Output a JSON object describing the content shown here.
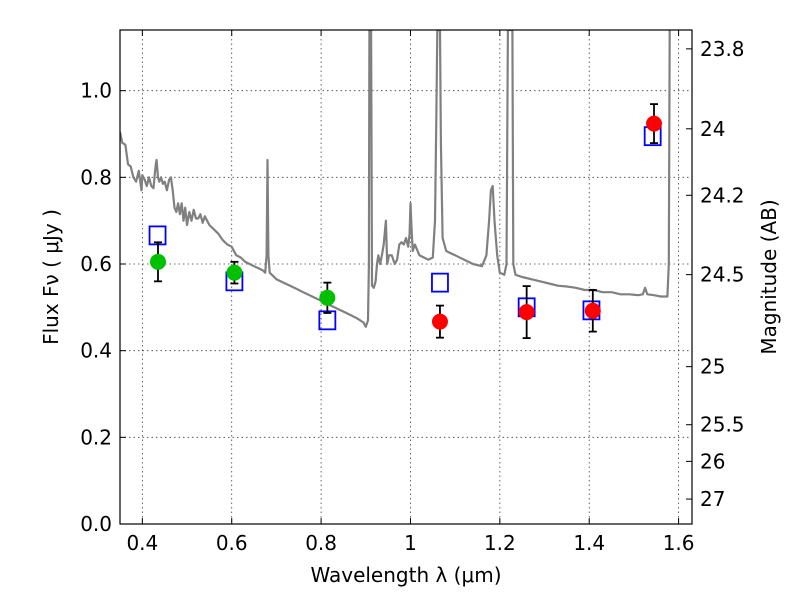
{
  "chart_data": {
    "type": "scatter",
    "title": "",
    "xlabel": "Wavelength  λ (μm)",
    "ylabel": "Flux  Fν  ( μJy )",
    "y2label": "Magnitude (AB)",
    "xlim": [
      0.35,
      1.63
    ],
    "ylim": [
      0.0,
      1.14
    ],
    "grid": true,
    "legend": "none",
    "x_ticks": [
      {
        "value": 0.4,
        "label": "0.4"
      },
      {
        "value": 0.6,
        "label": "0.6"
      },
      {
        "value": 0.8,
        "label": "0.8"
      },
      {
        "value": 1.0,
        "label": "1"
      },
      {
        "value": 1.2,
        "label": "1.2"
      },
      {
        "value": 1.4,
        "label": "1.4"
      },
      {
        "value": 1.6,
        "label": "1.6"
      }
    ],
    "y_ticks": [
      {
        "value": 0.0,
        "label": "0.0"
      },
      {
        "value": 0.2,
        "label": "0.2"
      },
      {
        "value": 0.4,
        "label": "0.4"
      },
      {
        "value": 0.6,
        "label": "0.6"
      },
      {
        "value": 0.8,
        "label": "0.8"
      },
      {
        "value": 1.0,
        "label": "1.0"
      }
    ],
    "magnitude_ticks": [
      {
        "value": 23.8,
        "label": "23.8"
      },
      {
        "value": 24.0,
        "label": "24"
      },
      {
        "value": 24.2,
        "label": "24.2"
      },
      {
        "value": 24.5,
        "label": "24.5"
      },
      {
        "value": 25.0,
        "label": "25"
      },
      {
        "value": 25.5,
        "label": "25.5"
      },
      {
        "value": 26.0,
        "label": "26"
      },
      {
        "value": 27.0,
        "label": "27"
      }
    ],
    "colors": {
      "model": "#808080",
      "green": "#00c000",
      "red": "#ff0000",
      "box": "#0000ff",
      "errorbar": "#000000"
    },
    "series": [
      {
        "type": "line",
        "points": [
          [
            0.35,
            0.905
          ],
          [
            0.355,
            0.88
          ],
          [
            0.362,
            0.875
          ],
          [
            0.368,
            0.83
          ],
          [
            0.374,
            0.825
          ],
          [
            0.38,
            0.8
          ],
          [
            0.386,
            0.79
          ],
          [
            0.392,
            0.815
          ],
          [
            0.398,
            0.77
          ],
          [
            0.4,
            0.805
          ],
          [
            0.405,
            0.795
          ],
          [
            0.41,
            0.78
          ],
          [
            0.415,
            0.8
          ],
          [
            0.42,
            0.78
          ],
          [
            0.425,
            0.775
          ],
          [
            0.428,
            0.81
          ],
          [
            0.43,
            0.83
          ],
          [
            0.432,
            0.84
          ],
          [
            0.435,
            0.8
          ],
          [
            0.438,
            0.79
          ],
          [
            0.442,
            0.8
          ],
          [
            0.446,
            0.785
          ],
          [
            0.45,
            0.79
          ],
          [
            0.455,
            0.77
          ],
          [
            0.46,
            0.795
          ],
          [
            0.464,
            0.8
          ],
          [
            0.468,
            0.77
          ],
          [
            0.472,
            0.73
          ],
          [
            0.476,
            0.72
          ],
          [
            0.48,
            0.74
          ],
          [
            0.484,
            0.715
          ],
          [
            0.488,
            0.74
          ],
          [
            0.492,
            0.7
          ],
          [
            0.496,
            0.73
          ],
          [
            0.5,
            0.69
          ],
          [
            0.505,
            0.72
          ],
          [
            0.51,
            0.7
          ],
          [
            0.515,
            0.725
          ],
          [
            0.52,
            0.705
          ],
          [
            0.525,
            0.705
          ],
          [
            0.53,
            0.715
          ],
          [
            0.535,
            0.695
          ],
          [
            0.54,
            0.71
          ],
          [
            0.545,
            0.7
          ],
          [
            0.55,
            0.69
          ],
          [
            0.56,
            0.68
          ],
          [
            0.57,
            0.67
          ],
          [
            0.58,
            0.655
          ],
          [
            0.59,
            0.645
          ],
          [
            0.6,
            0.64
          ],
          [
            0.61,
            0.62
          ],
          [
            0.62,
            0.615
          ],
          [
            0.63,
            0.605
          ],
          [
            0.64,
            0.6
          ],
          [
            0.65,
            0.595
          ],
          [
            0.66,
            0.59
          ],
          [
            0.67,
            0.585
          ],
          [
            0.675,
            0.58
          ],
          [
            0.678,
            0.62
          ],
          [
            0.68,
            0.84
          ],
          [
            0.682,
            0.62
          ],
          [
            0.685,
            0.58
          ],
          [
            0.69,
            0.575
          ],
          [
            0.7,
            0.565
          ],
          [
            0.72,
            0.555
          ],
          [
            0.74,
            0.545
          ],
          [
            0.76,
            0.535
          ],
          [
            0.78,
            0.525
          ],
          [
            0.8,
            0.515
          ],
          [
            0.82,
            0.505
          ],
          [
            0.84,
            0.495
          ],
          [
            0.86,
            0.485
          ],
          [
            0.88,
            0.475
          ],
          [
            0.895,
            0.465
          ],
          [
            0.9,
            0.455
          ],
          [
            0.905,
            0.47
          ],
          [
            0.907,
            0.6
          ],
          [
            0.908,
            1.14
          ],
          [
            0.912,
            1.14
          ],
          [
            0.914,
            0.55
          ],
          [
            0.918,
            0.545
          ],
          [
            0.922,
            0.56
          ],
          [
            0.925,
            0.6
          ],
          [
            0.928,
            0.62
          ],
          [
            0.932,
            0.6
          ],
          [
            0.936,
            0.62
          ],
          [
            0.94,
            0.645
          ],
          [
            0.945,
            0.7
          ],
          [
            0.948,
            0.6
          ],
          [
            0.952,
            0.62
          ],
          [
            0.958,
            0.62
          ],
          [
            0.965,
            0.6
          ],
          [
            0.97,
            0.61
          ],
          [
            0.975,
            0.645
          ],
          [
            0.98,
            0.65
          ],
          [
            0.985,
            0.645
          ],
          [
            0.99,
            0.66
          ],
          [
            0.995,
            0.64
          ],
          [
            0.998,
            0.67
          ],
          [
            1.0,
            0.74
          ],
          [
            1.002,
            0.69
          ],
          [
            1.005,
            0.63
          ],
          [
            1.01,
            0.645
          ],
          [
            1.02,
            0.62
          ],
          [
            1.03,
            0.615
          ],
          [
            1.04,
            0.61
          ],
          [
            1.05,
            0.615
          ],
          [
            1.055,
            0.7
          ],
          [
            1.058,
            0.95
          ],
          [
            1.06,
            1.14
          ],
          [
            1.066,
            1.14
          ],
          [
            1.068,
            0.88
          ],
          [
            1.072,
            0.66
          ],
          [
            1.08,
            0.63
          ],
          [
            1.09,
            0.625
          ],
          [
            1.1,
            0.62
          ],
          [
            1.12,
            0.61
          ],
          [
            1.14,
            0.6
          ],
          [
            1.16,
            0.595
          ],
          [
            1.17,
            0.62
          ],
          [
            1.176,
            0.7
          ],
          [
            1.18,
            0.77
          ],
          [
            1.184,
            0.78
          ],
          [
            1.188,
            0.7
          ],
          [
            1.194,
            0.62
          ],
          [
            1.2,
            0.58
          ],
          [
            1.21,
            0.575
          ],
          [
            1.215,
            0.6
          ],
          [
            1.218,
            1.14
          ],
          [
            1.228,
            1.14
          ],
          [
            1.23,
            0.6
          ],
          [
            1.235,
            0.575
          ],
          [
            1.25,
            0.57
          ],
          [
            1.27,
            0.565
          ],
          [
            1.29,
            0.56
          ],
          [
            1.31,
            0.555
          ],
          [
            1.33,
            0.55
          ],
          [
            1.35,
            0.548
          ],
          [
            1.37,
            0.545
          ],
          [
            1.39,
            0.54
          ],
          [
            1.41,
            0.54
          ],
          [
            1.43,
            0.535
          ],
          [
            1.45,
            0.535
          ],
          [
            1.47,
            0.53
          ],
          [
            1.49,
            0.53
          ],
          [
            1.51,
            0.528
          ],
          [
            1.52,
            0.53
          ],
          [
            1.525,
            0.545
          ],
          [
            1.53,
            0.53
          ],
          [
            1.545,
            0.528
          ],
          [
            1.56,
            0.525
          ],
          [
            1.575,
            0.525
          ],
          [
            1.578,
            0.6
          ],
          [
            1.58,
            1.14
          ]
        ]
      },
      {
        "type": "scatter",
        "marker": "open-square",
        "points": [
          {
            "x": 0.434,
            "y": 0.666
          },
          {
            "x": 0.606,
            "y": 0.56
          },
          {
            "x": 0.814,
            "y": 0.47
          },
          {
            "x": 1.066,
            "y": 0.557
          },
          {
            "x": 1.26,
            "y": 0.5
          },
          {
            "x": 1.405,
            "y": 0.493
          },
          {
            "x": 1.542,
            "y": 0.895
          }
        ]
      },
      {
        "type": "scatter",
        "marker": "filled-circle-green",
        "points": [
          {
            "x": 0.435,
            "y": 0.605,
            "err": 0.045
          },
          {
            "x": 0.606,
            "y": 0.58,
            "err": 0.025
          },
          {
            "x": 0.814,
            "y": 0.522,
            "err": 0.035
          }
        ]
      },
      {
        "type": "scatter",
        "marker": "filled-circle-red",
        "points": [
          {
            "x": 1.066,
            "y": 0.467,
            "err": 0.037
          },
          {
            "x": 1.26,
            "y": 0.489,
            "err": 0.06
          },
          {
            "x": 1.408,
            "y": 0.492,
            "err": 0.048
          },
          {
            "x": 1.545,
            "y": 0.924,
            "err": 0.045
          }
        ]
      }
    ]
  }
}
